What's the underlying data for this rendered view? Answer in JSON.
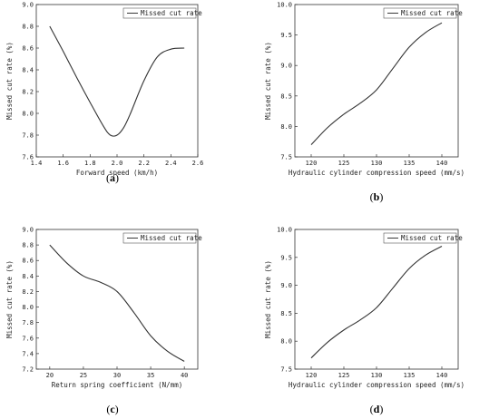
{
  "chart_data": [
    {
      "type": "line",
      "panel": "(a)",
      "panel_letter": "a",
      "xlabel": "Forward speed (km/h)",
      "ylabel": "Missed cut rate (%)",
      "legend": "Missed cut rate",
      "xlim": [
        1.4,
        2.6
      ],
      "ylim": [
        7.6,
        9.0
      ],
      "xticks": [
        "1.4",
        "1.6",
        "1.8",
        "2.0",
        "2.2",
        "2.4",
        "2.6"
      ],
      "yticks": [
        "7.6",
        "7.8",
        "8.0",
        "8.2",
        "8.4",
        "8.6",
        "8.8",
        "9.0"
      ],
      "x": [
        1.5,
        1.6,
        1.7,
        1.8,
        1.9,
        1.95,
        2.0,
        2.05,
        2.1,
        2.2,
        2.3,
        2.4,
        2.5
      ],
      "y": [
        8.8,
        8.57,
        8.33,
        8.1,
        7.88,
        7.8,
        7.8,
        7.87,
        8.0,
        8.3,
        8.52,
        8.59,
        8.6
      ]
    },
    {
      "type": "line",
      "panel": "(b)",
      "panel_letter": "b",
      "xlabel": "Hydraulic cylinder compression speed (mm/s)",
      "ylabel": "Missed cut rate (%)",
      "legend": "Missed cut rate",
      "xlim": [
        117.5,
        142.5
      ],
      "ylim": [
        7.5,
        10.0
      ],
      "xticks": [
        "120",
        "125",
        "130",
        "135",
        "140"
      ],
      "yticks": [
        "7.5",
        "8.0",
        "8.5",
        "9.0",
        "9.5",
        "10.0"
      ],
      "x": [
        120,
        122.5,
        125,
        127.5,
        130,
        132.5,
        135,
        137.5,
        140
      ],
      "y": [
        7.7,
        7.98,
        8.2,
        8.38,
        8.6,
        8.95,
        9.3,
        9.54,
        9.7
      ]
    },
    {
      "type": "line",
      "panel": "(c)",
      "panel_letter": "c",
      "xlabel": "Return spring coefficient (N/mm)",
      "ylabel": "Missed cut rate (%)",
      "legend": "Missed cut rate",
      "xlim": [
        18,
        42
      ],
      "ylim": [
        7.2,
        9.0
      ],
      "xticks": [
        "20",
        "25",
        "30",
        "35",
        "40"
      ],
      "yticks": [
        "7.2",
        "7.4",
        "7.6",
        "7.8",
        "8.0",
        "8.2",
        "8.4",
        "8.6",
        "8.8",
        "9.0"
      ],
      "x": [
        20,
        22.5,
        25,
        27.5,
        30,
        32.5,
        35,
        37.5,
        40
      ],
      "y": [
        8.8,
        8.57,
        8.4,
        8.32,
        8.2,
        7.93,
        7.63,
        7.43,
        7.3
      ]
    },
    {
      "type": "line",
      "panel": "(d)",
      "panel_letter": "d",
      "xlabel": "Hydraulic cylinder compression speed (mm/s)",
      "ylabel": "Missed cut rate (%)",
      "legend": "Missed cut rate",
      "xlim": [
        117.5,
        142.5
      ],
      "ylim": [
        7.5,
        10.0
      ],
      "xticks": [
        "120",
        "125",
        "130",
        "135",
        "140"
      ],
      "yticks": [
        "7.5",
        "8.0",
        "8.5",
        "9.0",
        "9.5",
        "10.0"
      ],
      "x": [
        120,
        122.5,
        125,
        127.5,
        130,
        132.5,
        135,
        137.5,
        140
      ],
      "y": [
        7.7,
        7.98,
        8.2,
        8.38,
        8.6,
        8.95,
        9.3,
        9.54,
        9.7
      ]
    }
  ]
}
